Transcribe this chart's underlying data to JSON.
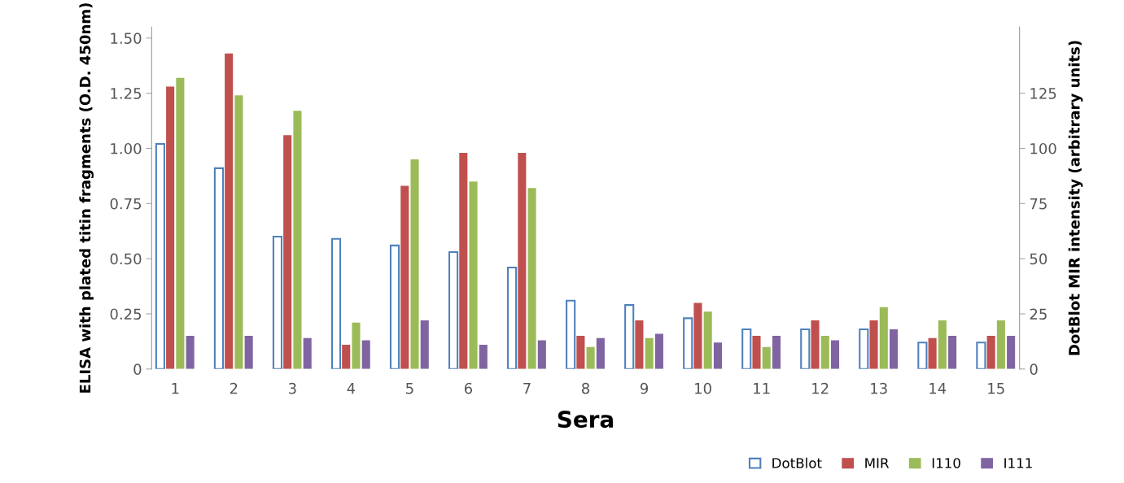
{
  "chart_data": {
    "type": "bar",
    "xlabel": "Sera",
    "ylabel": "ELISA with plated titin fragments (O.D. 450nm)",
    "y2label": "DotBlot MIR intensity (arbitrary units)",
    "categories": [
      "1",
      "2",
      "3",
      "4",
      "5",
      "6",
      "7",
      "8",
      "9",
      "10",
      "11",
      "12",
      "13",
      "14",
      "15"
    ],
    "series": [
      {
        "name": "DotBlot",
        "color": "#4f81bd",
        "axis": "y2",
        "values": [
          102,
          91,
          60,
          59,
          56,
          53,
          46,
          31,
          29,
          23,
          18,
          18,
          18,
          12,
          12
        ]
      },
      {
        "name": "MIR",
        "color": "#c0504d",
        "values": [
          1.28,
          1.43,
          1.06,
          0.11,
          0.83,
          0.98,
          0.98,
          0.15,
          0.22,
          0.3,
          0.15,
          0.22,
          0.22,
          0.14,
          0.15
        ]
      },
      {
        "name": "I110",
        "color": "#9bbb59",
        "values": [
          1.32,
          1.24,
          1.17,
          0.21,
          0.95,
          0.85,
          0.82,
          0.1,
          0.14,
          0.26,
          0.1,
          0.15,
          0.28,
          0.22,
          0.22
        ]
      },
      {
        "name": "I111",
        "color": "#8064a2",
        "values": [
          0.15,
          0.15,
          0.14,
          0.13,
          0.22,
          0.11,
          0.13,
          0.14,
          0.16,
          0.12,
          0.15,
          0.13,
          0.18,
          0.15,
          0.15
        ]
      }
    ],
    "ylim": [
      0,
      1.55
    ],
    "yticks": [
      {
        "value": 0,
        "label": "0"
      },
      {
        "value": 0.25,
        "label": "0.25"
      },
      {
        "value": 0.5,
        "label": "0.50"
      },
      {
        "value": 0.75,
        "label": "0.75"
      },
      {
        "value": 1,
        "label": "1.00"
      },
      {
        "value": 1.25,
        "label": "1.25"
      },
      {
        "value": 1.5,
        "label": "1.50"
      }
    ],
    "y2lim": [
      0,
      155
    ],
    "y2ticks": [
      0,
      25,
      50,
      75,
      100,
      125
    ],
    "grid": false,
    "legend": "bottom right"
  }
}
